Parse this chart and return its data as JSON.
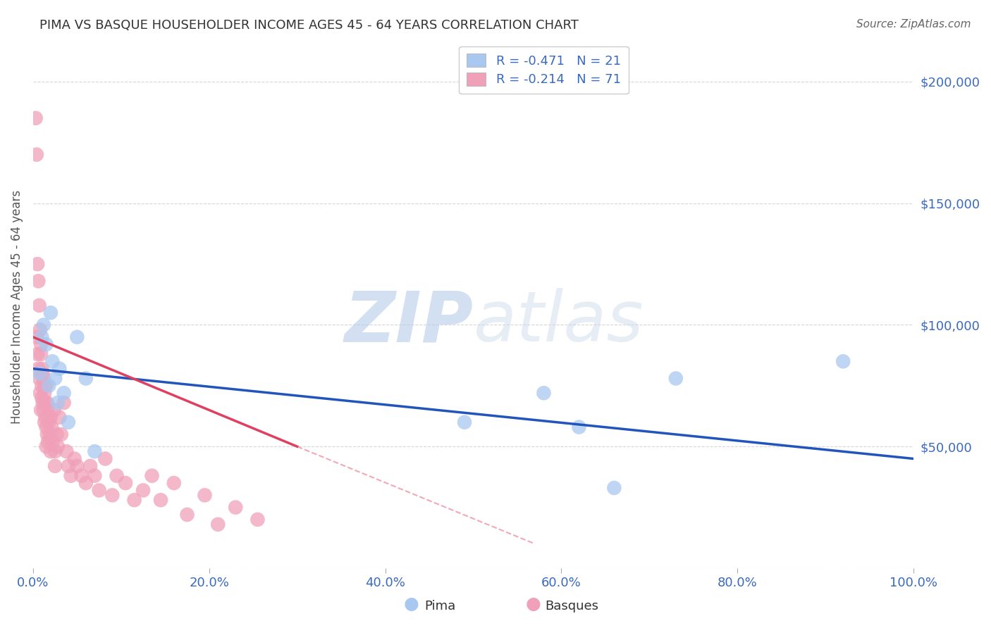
{
  "title": "PIMA VS BASQUE HOUSEHOLDER INCOME AGES 45 - 64 YEARS CORRELATION CHART",
  "source": "Source: ZipAtlas.com",
  "ylabel": "Householder Income Ages 45 - 64 years",
  "xlim": [
    0,
    1.0
  ],
  "ylim": [
    0,
    215000
  ],
  "yticks": [
    0,
    50000,
    100000,
    150000,
    200000
  ],
  "ytick_labels": [
    "",
    "$50,000",
    "$100,000",
    "$150,000",
    "$200,000"
  ],
  "xtick_labels": [
    "0.0%",
    "20.0%",
    "40.0%",
    "60.0%",
    "80.0%",
    "100.0%"
  ],
  "xticks": [
    0.0,
    0.2,
    0.4,
    0.6,
    0.8,
    1.0
  ],
  "pima_color": "#a8c8f0",
  "basque_color": "#f0a0b8",
  "pima_line_color": "#2255bb",
  "basque_line_color": "#e04060",
  "legend_label_pima": "R = -0.471   N = 21",
  "legend_label_basque": "R = -0.214   N = 71",
  "pima_x": [
    0.008,
    0.01,
    0.012,
    0.015,
    0.018,
    0.02,
    0.022,
    0.025,
    0.028,
    0.03,
    0.035,
    0.04,
    0.05,
    0.06,
    0.07,
    0.49,
    0.58,
    0.62,
    0.66,
    0.73,
    0.92
  ],
  "pima_y": [
    80000,
    95000,
    100000,
    92000,
    75000,
    105000,
    85000,
    78000,
    68000,
    82000,
    72000,
    60000,
    95000,
    78000,
    48000,
    60000,
    72000,
    58000,
    33000,
    78000,
    85000
  ],
  "basque_x": [
    0.003,
    0.004,
    0.004,
    0.005,
    0.005,
    0.006,
    0.006,
    0.007,
    0.007,
    0.008,
    0.008,
    0.009,
    0.009,
    0.009,
    0.01,
    0.01,
    0.01,
    0.011,
    0.011,
    0.012,
    0.012,
    0.013,
    0.013,
    0.013,
    0.014,
    0.014,
    0.015,
    0.015,
    0.016,
    0.016,
    0.017,
    0.017,
    0.018,
    0.019,
    0.02,
    0.021,
    0.022,
    0.024,
    0.025,
    0.027,
    0.028,
    0.03,
    0.032,
    0.035,
    0.038,
    0.04,
    0.043,
    0.047,
    0.05,
    0.055,
    0.06,
    0.065,
    0.07,
    0.075,
    0.082,
    0.09,
    0.095,
    0.105,
    0.115,
    0.125,
    0.135,
    0.145,
    0.16,
    0.175,
    0.195,
    0.21,
    0.23,
    0.255,
    0.015,
    0.02,
    0.025
  ],
  "basque_y": [
    185000,
    170000,
    95000,
    125000,
    88000,
    118000,
    82000,
    108000,
    78000,
    98000,
    72000,
    88000,
    65000,
    92000,
    82000,
    75000,
    70000,
    80000,
    68000,
    78000,
    65000,
    72000,
    60000,
    75000,
    68000,
    62000,
    75000,
    58000,
    68000,
    55000,
    65000,
    52000,
    60000,
    55000,
    62000,
    58000,
    52000,
    65000,
    48000,
    55000,
    50000,
    62000,
    55000,
    68000,
    48000,
    42000,
    38000,
    45000,
    42000,
    38000,
    35000,
    42000,
    38000,
    32000,
    45000,
    30000,
    38000,
    35000,
    28000,
    32000,
    38000,
    28000,
    35000,
    22000,
    30000,
    18000,
    25000,
    20000,
    50000,
    48000,
    42000
  ],
  "pima_line_x0": 0.0,
  "pima_line_y0": 82000,
  "pima_line_x1": 1.0,
  "pima_line_y1": 45000,
  "basque_line_x0": 0.0,
  "basque_line_y0": 95000,
  "basque_line_x1_solid": 0.3,
  "basque_line_y1_solid": 50000,
  "basque_line_x1_dash": 0.57,
  "basque_line_y1_dash": 10000,
  "watermark_zip": "ZIP",
  "watermark_atlas": "atlas",
  "background_color": "#ffffff",
  "grid_color": "#cccccc"
}
